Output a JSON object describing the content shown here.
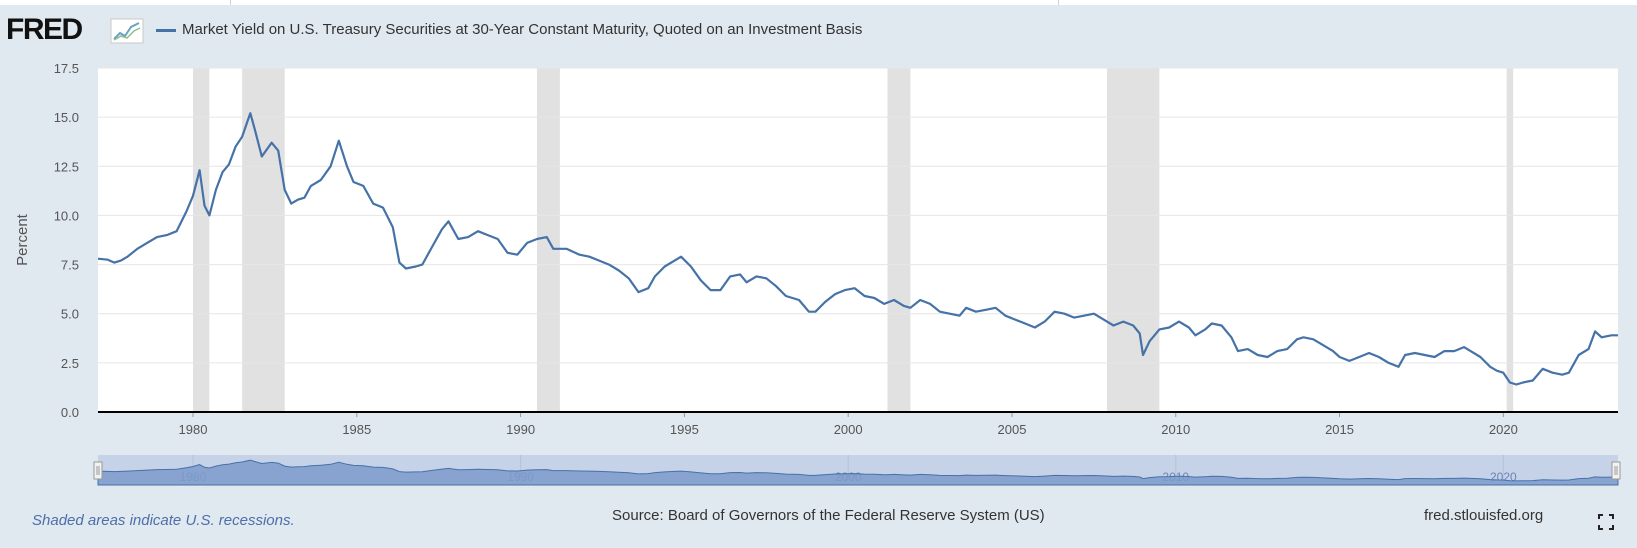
{
  "header": {
    "logo_text": "FRED",
    "logo_icon": "fred-graph-icon",
    "series_title": "Market Yield on U.S. Treasury Securities at 30-Year Constant Maturity, Quoted on an Investment Basis"
  },
  "footer": {
    "recession_note": "Shaded areas indicate U.S. recessions.",
    "source": "Source: Board of Governors of the Federal Reserve System (US)",
    "site": "fred.stlouisfed.org",
    "fullscreen_icon": "fullscreen-icon"
  },
  "colors": {
    "series": "#4572a7",
    "recession": "#e1e1e1",
    "navigator_fill": "#7d9bcb",
    "navigator_bg": "#c5d2e8",
    "page_bg": "#e1e9f0"
  },
  "chart_data": {
    "type": "line",
    "title": "",
    "xlabel": "",
    "ylabel": "Percent",
    "ylim": [
      0,
      17.5
    ],
    "xlim": [
      1977.1,
      2023.5
    ],
    "yticks": [
      "0.0",
      "2.5",
      "5.0",
      "7.5",
      "10.0",
      "12.5",
      "15.0",
      "17.5"
    ],
    "xticks": [
      "1980",
      "1985",
      "1990",
      "1995",
      "2000",
      "2005",
      "2010",
      "2015",
      "2020"
    ],
    "navigator_ticks": [
      "1980",
      "1990",
      "2000",
      "2010",
      "2020"
    ],
    "grid": true,
    "legend": "top-left",
    "recessions": [
      [
        1980.0,
        1980.5
      ],
      [
        1981.5,
        1982.8
      ],
      [
        1990.5,
        1991.2
      ],
      [
        2001.2,
        2001.9
      ],
      [
        2007.9,
        2009.5
      ],
      [
        2020.1,
        2020.3
      ]
    ],
    "series": [
      {
        "name": "Market Yield on U.S. Treasury Securities at 30-Year Constant Maturity, Quoted on an Investment Basis",
        "x": [
          1977.1,
          1977.4,
          1977.6,
          1977.8,
          1978.0,
          1978.3,
          1978.6,
          1978.9,
          1979.2,
          1979.5,
          1979.8,
          1980.0,
          1980.2,
          1980.35,
          1980.5,
          1980.7,
          1980.9,
          1981.1,
          1981.3,
          1981.5,
          1981.75,
          1981.9,
          1982.1,
          1982.4,
          1982.6,
          1982.8,
          1983.0,
          1983.2,
          1983.4,
          1983.6,
          1983.9,
          1984.2,
          1984.45,
          1984.7,
          1984.9,
          1985.2,
          1985.5,
          1985.8,
          1986.1,
          1986.3,
          1986.5,
          1986.8,
          1987.0,
          1987.3,
          1987.6,
          1987.8,
          1988.1,
          1988.4,
          1988.7,
          1989.0,
          1989.3,
          1989.6,
          1989.9,
          1990.2,
          1990.5,
          1990.8,
          1991.0,
          1991.4,
          1991.8,
          1992.1,
          1992.4,
          1992.7,
          1993.0,
          1993.3,
          1993.6,
          1993.9,
          1994.1,
          1994.4,
          1994.7,
          1994.9,
          1995.2,
          1995.5,
          1995.8,
          1996.1,
          1996.4,
          1996.7,
          1996.9,
          1997.2,
          1997.5,
          1997.8,
          1998.1,
          1998.5,
          1998.8,
          1999.0,
          1999.3,
          1999.6,
          1999.9,
          2000.2,
          2000.5,
          2000.8,
          2001.1,
          2001.4,
          2001.7,
          2001.9,
          2002.2,
          2002.5,
          2002.8,
          2003.1,
          2003.4,
          2003.6,
          2003.9,
          2004.2,
          2004.5,
          2004.8,
          2005.1,
          2005.4,
          2005.7,
          2006.0,
          2006.3,
          2006.6,
          2006.9,
          2007.2,
          2007.5,
          2007.8,
          2008.1,
          2008.4,
          2008.7,
          2008.9,
          2009.0,
          2009.2,
          2009.5,
          2009.8,
          2010.1,
          2010.4,
          2010.6,
          2010.9,
          2011.1,
          2011.4,
          2011.7,
          2011.9,
          2012.2,
          2012.5,
          2012.8,
          2013.1,
          2013.4,
          2013.7,
          2013.9,
          2014.2,
          2014.5,
          2014.8,
          2015.0,
          2015.3,
          2015.6,
          2015.9,
          2016.2,
          2016.5,
          2016.8,
          2017.0,
          2017.3,
          2017.6,
          2017.9,
          2018.2,
          2018.5,
          2018.8,
          2019.0,
          2019.3,
          2019.6,
          2019.8,
          2020.0,
          2020.2,
          2020.4,
          2020.6,
          2020.9,
          2021.2,
          2021.5,
          2021.8,
          2022.0,
          2022.3,
          2022.6,
          2022.8,
          2023.0,
          2023.3,
          2023.5
        ],
        "y": [
          7.8,
          7.75,
          7.6,
          7.7,
          7.9,
          8.3,
          8.6,
          8.9,
          9.0,
          9.2,
          10.2,
          11.0,
          12.3,
          10.5,
          10.0,
          11.3,
          12.2,
          12.6,
          13.5,
          14.0,
          15.2,
          14.3,
          13.0,
          13.7,
          13.3,
          11.3,
          10.6,
          10.8,
          10.9,
          11.5,
          11.8,
          12.5,
          13.8,
          12.5,
          11.7,
          11.5,
          10.6,
          10.4,
          9.4,
          7.6,
          7.3,
          7.4,
          7.5,
          8.4,
          9.3,
          9.7,
          8.8,
          8.9,
          9.2,
          9.0,
          8.8,
          8.1,
          8.0,
          8.6,
          8.8,
          8.9,
          8.3,
          8.3,
          8.0,
          7.9,
          7.7,
          7.5,
          7.2,
          6.8,
          6.1,
          6.3,
          6.9,
          7.4,
          7.7,
          7.9,
          7.4,
          6.7,
          6.2,
          6.2,
          6.9,
          7.0,
          6.6,
          6.9,
          6.8,
          6.4,
          5.9,
          5.7,
          5.1,
          5.1,
          5.6,
          6.0,
          6.2,
          6.3,
          5.9,
          5.8,
          5.5,
          5.7,
          5.4,
          5.3,
          5.7,
          5.5,
          5.1,
          5.0,
          4.9,
          5.3,
          5.1,
          5.2,
          5.3,
          4.9,
          4.7,
          4.5,
          4.3,
          4.6,
          5.1,
          5.0,
          4.8,
          4.9,
          5.0,
          4.7,
          4.4,
          4.6,
          4.4,
          4.0,
          2.9,
          3.6,
          4.2,
          4.3,
          4.6,
          4.3,
          3.9,
          4.2,
          4.5,
          4.4,
          3.8,
          3.1,
          3.2,
          2.9,
          2.8,
          3.1,
          3.2,
          3.7,
          3.8,
          3.7,
          3.4,
          3.1,
          2.8,
          2.6,
          2.8,
          3.0,
          2.8,
          2.5,
          2.3,
          2.9,
          3.0,
          2.9,
          2.8,
          3.1,
          3.1,
          3.3,
          3.1,
          2.8,
          2.3,
          2.1,
          2.0,
          1.5,
          1.4,
          1.5,
          1.6,
          2.2,
          2.0,
          1.9,
          2.0,
          2.9,
          3.2,
          4.1,
          3.8,
          3.9,
          3.9
        ]
      }
    ]
  }
}
